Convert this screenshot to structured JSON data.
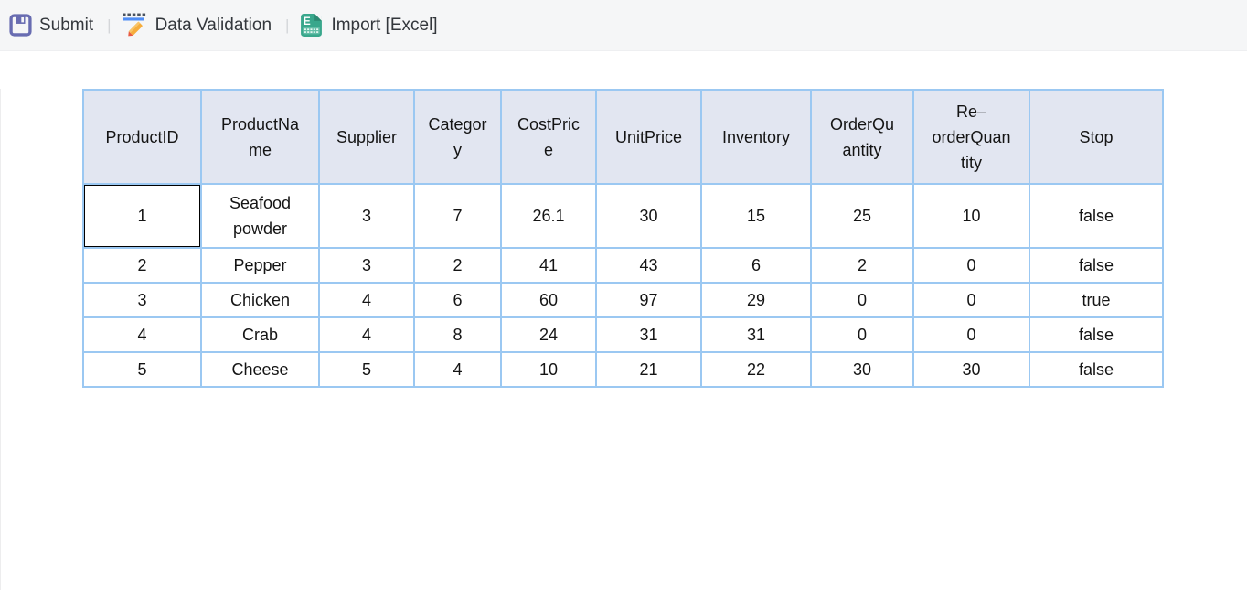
{
  "toolbar": {
    "separator": "|",
    "buttons": [
      {
        "label": "Submit",
        "icon": "save-icon"
      },
      {
        "label": "Data Validation",
        "icon": "pencil-validation-icon"
      },
      {
        "label": "Import [Excel]",
        "icon": "excel-file-icon"
      }
    ]
  },
  "grid": {
    "columns": [
      {
        "label": "ProductID"
      },
      {
        "label": "ProductNa\nme"
      },
      {
        "label": "Supplier"
      },
      {
        "label": "Categor\ny"
      },
      {
        "label": "CostPric\ne"
      },
      {
        "label": "UnitPrice"
      },
      {
        "label": "Inventory"
      },
      {
        "label": "OrderQu\nantity"
      },
      {
        "label": "Re–\norderQuan\ntity"
      },
      {
        "label": "Stop"
      }
    ],
    "rows": [
      [
        "1",
        "Seafood powder",
        "3",
        "7",
        "26.1",
        "30",
        "15",
        "25",
        "10",
        "false"
      ],
      [
        "2",
        "Pepper",
        "3",
        "2",
        "41",
        "43",
        "6",
        "2",
        "0",
        "false"
      ],
      [
        "3",
        "Chicken",
        "4",
        "6",
        "60",
        "97",
        "29",
        "0",
        "0",
        "true"
      ],
      [
        "4",
        "Crab",
        "4",
        "8",
        "24",
        "31",
        "31",
        "0",
        "0",
        "false"
      ],
      [
        "5",
        "Cheese",
        "5",
        "4",
        "10",
        "21",
        "22",
        "30",
        "30",
        "false"
      ]
    ],
    "selection": {
      "row": 0,
      "col": 0
    }
  },
  "colors": {
    "toolbar_bg": "#f5f6f7",
    "grid_border": "#9bc8f2",
    "header_bg": "#e2e6f1",
    "selection_border": "#000000",
    "save_icon": "#686cb1",
    "pencil_yellow": "#f6ad3c",
    "pencil_tip": "#e85a43",
    "rule_blue": "#4f8df5",
    "excel_green": "#39a78c"
  }
}
